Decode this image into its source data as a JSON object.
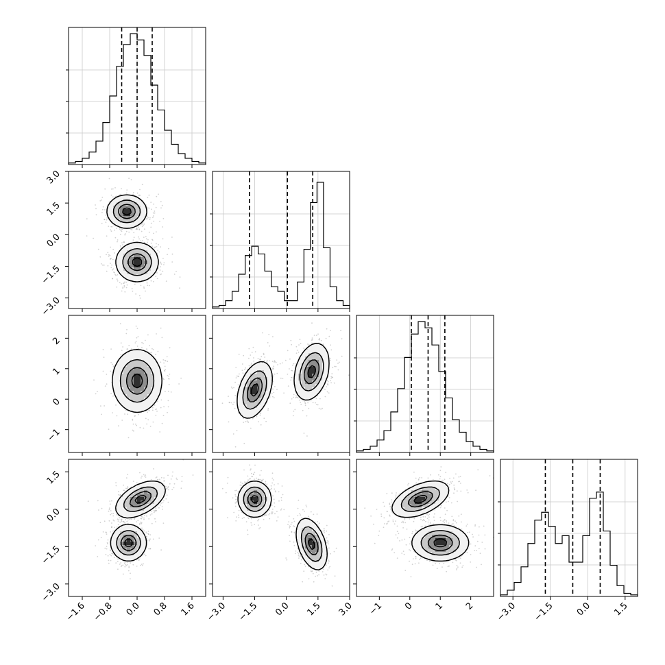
{
  "chart_data": {
    "type": "corner",
    "title": "",
    "parameters": 4,
    "axis_labels": [
      "",
      "",
      "",
      ""
    ],
    "ranges": [
      [
        -2.0,
        2.0
      ],
      [
        -3.5,
        3.0
      ],
      [
        -1.75,
        2.75
      ],
      [
        -3.5,
        2.0
      ]
    ],
    "ticks": [
      [
        -1.6,
        -0.8,
        0.0,
        0.8,
        1.6
      ],
      [
        -3.0,
        -1.5,
        0.0,
        1.5,
        3.0
      ],
      [
        -1,
        0,
        1,
        2
      ],
      [
        -3.0,
        -1.5,
        0.0,
        1.5
      ]
    ],
    "tick_labels": [
      [
        "−1.6",
        "−0.8",
        "0.0",
        "0.8",
        "1.6"
      ],
      [
        "−3.0",
        "−1.5",
        "0.0",
        "1.5",
        "3.0"
      ],
      [
        "−1",
        "0",
        "1",
        "2"
      ],
      [
        "−3.0",
        "−1.5",
        "0.0",
        "1.5"
      ]
    ],
    "quantile_lines": [
      [
        -0.45,
        0.0,
        0.44
      ],
      [
        -1.75,
        0.05,
        1.25
      ],
      [
        0.05,
        0.6,
        1.15
      ],
      [
        -1.7,
        -0.6,
        0.5
      ]
    ],
    "histograms": [
      {
        "edges_range": [
          -2.0,
          2.0
        ],
        "counts": [
          1,
          2,
          4,
          8,
          15,
          27,
          44,
          63,
          77,
          84,
          80,
          70,
          51,
          35,
          22,
          13,
          7,
          4,
          2,
          1
        ]
      },
      {
        "edges_range": [
          -3.5,
          3.0
        ],
        "counts": [
          1,
          2,
          5,
          11,
          22,
          34,
          40,
          35,
          24,
          14,
          11,
          5,
          5,
          17,
          38,
          68,
          81,
          39,
          14,
          5,
          2
        ]
      },
      {
        "edges_range": [
          -1.75,
          2.75
        ],
        "counts": [
          1,
          2,
          4,
          8,
          14,
          26,
          41,
          61,
          76,
          84,
          80,
          69,
          52,
          35,
          21,
          13,
          7,
          4,
          2,
          1
        ]
      },
      {
        "edges_range": [
          -3.5,
          2.0
        ],
        "counts": [
          1,
          4,
          9,
          19,
          34,
          49,
          54,
          45,
          34,
          39,
          22,
          22,
          39,
          63,
          67,
          42,
          20,
          7,
          2,
          1
        ]
      }
    ],
    "hist_ylim": [
      0,
      88
    ],
    "joint_components": {
      "1_0": [
        {
          "mx": -0.3,
          "my": 1.1,
          "sx": 0.28,
          "sy": 0.38,
          "rho": 0.0
        },
        {
          "mx": 0.0,
          "my": -1.3,
          "sx": 0.3,
          "sy": 0.45,
          "rho": 0.0
        }
      ],
      "2_0": [
        {
          "mx": 0.0,
          "my": 0.6,
          "sx": 0.35,
          "sy": 0.5,
          "rho": 0.0
        }
      ],
      "3_0": [
        {
          "mx": 0.1,
          "my": 0.4,
          "sx": 0.35,
          "sy": 0.35,
          "rho": 0.5
        },
        {
          "mx": -0.25,
          "my": -1.35,
          "sx": 0.25,
          "sy": 0.35,
          "rho": 0.0
        }
      ],
      "2_1": [
        {
          "mx": -1.5,
          "my": 0.3,
          "sx": 0.4,
          "sy": 0.45,
          "rho": 0.4
        },
        {
          "mx": 1.2,
          "my": 0.9,
          "sx": 0.4,
          "sy": 0.45,
          "rho": 0.3
        }
      ],
      "3_1": [
        {
          "mx": -1.5,
          "my": 0.4,
          "sx": 0.38,
          "sy": 0.35,
          "rho": 0.0
        },
        {
          "mx": 1.2,
          "my": -1.4,
          "sx": 0.35,
          "sy": 0.5,
          "rho": -0.4
        }
      ],
      "3_2": [
        {
          "mx": 0.35,
          "my": 0.4,
          "sx": 0.45,
          "sy": 0.35,
          "rho": 0.5
        },
        {
          "mx": 1.0,
          "my": -1.35,
          "sx": 0.45,
          "sy": 0.35,
          "rho": 0.0
        }
      ]
    },
    "grid": true,
    "legend": "none"
  }
}
